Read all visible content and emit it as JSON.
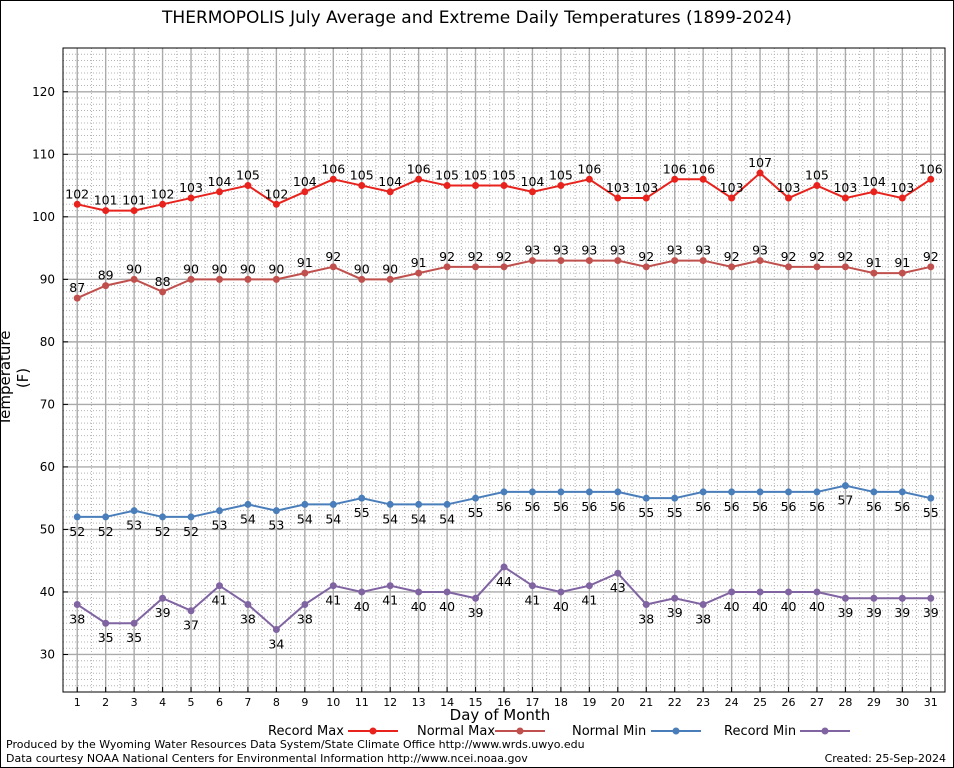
{
  "chart_data": {
    "type": "line",
    "title": "THERMOPOLIS July Average and Extreme Daily Temperatures (1899-2024)",
    "xlabel": "Day of Month",
    "ylabel": "Temperature (F)",
    "xlim": [
      0.5,
      31.5
    ],
    "ylim": [
      24,
      127
    ],
    "yticks": [
      30,
      40,
      50,
      60,
      70,
      80,
      90,
      100,
      110,
      120
    ],
    "x": [
      1,
      2,
      3,
      4,
      5,
      6,
      7,
      8,
      9,
      10,
      11,
      12,
      13,
      14,
      15,
      16,
      17,
      18,
      19,
      20,
      21,
      22,
      23,
      24,
      25,
      26,
      27,
      28,
      29,
      30,
      31
    ],
    "grid": true,
    "legend_position": "bottom",
    "series": [
      {
        "name": "Record Max",
        "color": "#e8231d",
        "values": [
          102,
          101,
          101,
          102,
          103,
          104,
          105,
          102,
          104,
          106,
          105,
          104,
          106,
          105,
          105,
          105,
          104,
          105,
          106,
          103,
          103,
          106,
          106,
          103,
          107,
          103,
          105,
          103,
          104,
          103,
          106
        ]
      },
      {
        "name": "Normal Max",
        "color": "#c0504d",
        "values": [
          87,
          89,
          90,
          88,
          90,
          90,
          90,
          90,
          91,
          92,
          90,
          90,
          91,
          92,
          92,
          92,
          93,
          93,
          93,
          93,
          92,
          93,
          93,
          92,
          93,
          92,
          92,
          92,
          91,
          91,
          92
        ]
      },
      {
        "name": "Normal Min",
        "color": "#4a7ebb",
        "values": [
          52,
          52,
          53,
          52,
          52,
          53,
          54,
          53,
          54,
          54,
          55,
          54,
          54,
          54,
          55,
          56,
          56,
          56,
          56,
          56,
          55,
          55,
          56,
          56,
          56,
          56,
          56,
          57,
          56,
          56,
          55
        ]
      },
      {
        "name": "Record Min",
        "color": "#8064a2",
        "values": [
          38,
          35,
          35,
          39,
          37,
          41,
          38,
          34,
          38,
          41,
          40,
          41,
          40,
          40,
          39,
          44,
          41,
          40,
          41,
          43,
          38,
          39,
          38,
          40,
          40,
          40,
          40,
          39,
          39,
          39,
          39
        ]
      }
    ]
  },
  "footer": {
    "produced_by": "Produced by the Wyoming Water Resources Data System/State Climate Office http://www.wrds.uwyo.edu",
    "courtesy": "Data courtesy NOAA National Centers for Environmental Information http://www.ncei.noaa.gov",
    "created": "Created:  25-Sep-2024"
  }
}
